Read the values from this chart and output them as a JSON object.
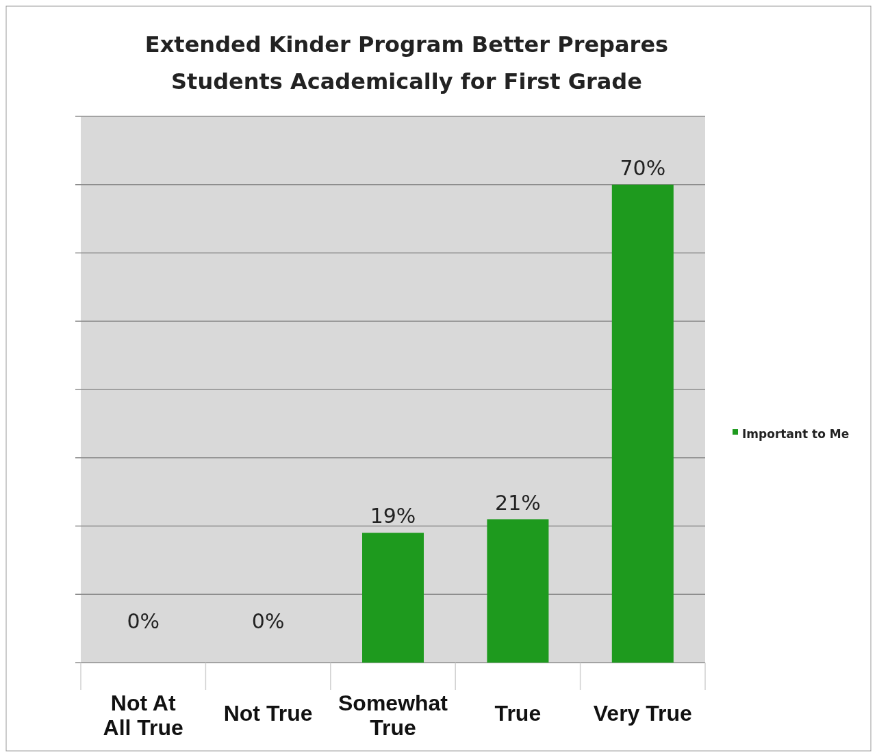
{
  "chart_data": {
    "type": "bar",
    "title": "Extended Kinder Program Better Prepares Students Academically for First Grade",
    "categories": [
      "Not At All True",
      "Not True",
      "Somewhat True",
      "True",
      "Very True"
    ],
    "series": [
      {
        "name": "Important to Me",
        "color": "#1e9a1e",
        "values": [
          0,
          0,
          19,
          21,
          70
        ],
        "value_labels": [
          "0%",
          "0%",
          "19%",
          "21%",
          "70%"
        ]
      }
    ],
    "ylim": [
      0,
      80
    ],
    "yticks": [
      {
        "value": 0,
        "label": null
      },
      {
        "value": 10,
        "label": null
      },
      {
        "value": 20,
        "label": null
      },
      {
        "value": 30,
        "label": null
      },
      {
        "value": 40,
        "label": null
      },
      {
        "value": 50,
        "label": null
      },
      {
        "value": 60,
        "label": null
      },
      {
        "value": 70,
        "label": null
      },
      {
        "value": 80,
        "label": null
      }
    ],
    "tick_labels": "x",
    "grid": "y",
    "legend": "right"
  }
}
